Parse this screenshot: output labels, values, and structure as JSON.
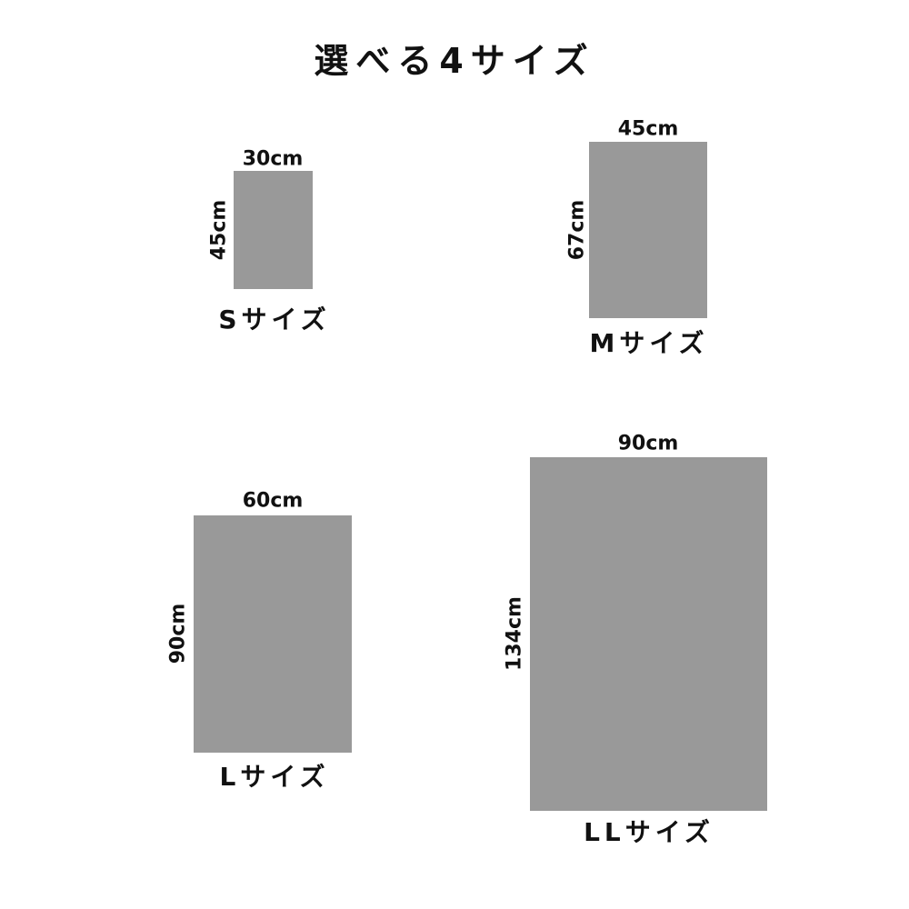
{
  "title": "選べる4サイズ",
  "fill_color": "#999999",
  "sizes": [
    {
      "name": "Sサイズ",
      "width": "30cm",
      "height": "45cm"
    },
    {
      "name": "Mサイズ",
      "width": "45cm",
      "height": "67cm"
    },
    {
      "name": "Lサイズ",
      "width": "60cm",
      "height": "90cm"
    },
    {
      "name": "LLサイズ",
      "width": "90cm",
      "height": "134cm"
    }
  ]
}
